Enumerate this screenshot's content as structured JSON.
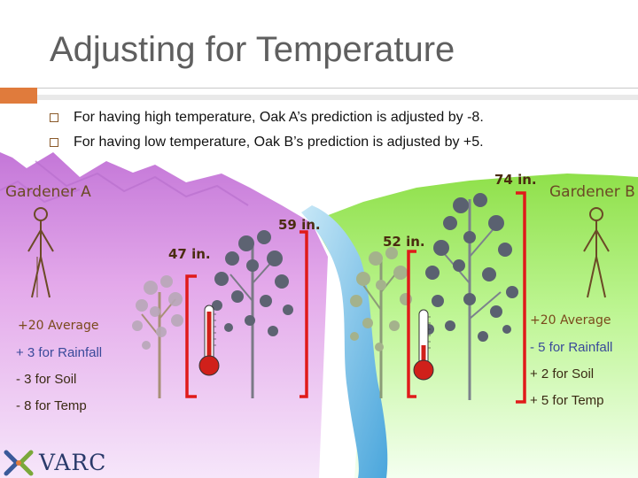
{
  "slide": {
    "title": "Adjusting for Temperature",
    "bullets": [
      "For having high temperature, Oak A’s prediction is adjusted by -8.",
      "For having low temperature, Oak B’s prediction is adjusted by +5."
    ]
  },
  "scene": {
    "gardener_a": "Gardener A",
    "gardener_b": "Gardener B",
    "heights": [
      "47 in.",
      "59 in.",
      "52 in.",
      "74 in."
    ],
    "gardener_a_adjustments": {
      "average": "+20 Average",
      "rainfall": "+ 3 for Rainfall",
      "soil": "- 3 for Soil",
      "temp": "- 8 for Temp"
    },
    "gardener_b_adjustments": {
      "average": "+20 Average",
      "rainfall": "- 5 for Rainfall",
      "soil": "+ 2 for Soil",
      "temp": "+ 5 for Temp"
    }
  },
  "logo": {
    "text": "VARC"
  },
  "colors": {
    "left_ground": "#e3a8ea",
    "right_ground": "#aef07a",
    "river": "#5fb3e0",
    "bracket": "#e01a1a",
    "thermometer": "#d0201a",
    "accent": "#e07b3c"
  }
}
